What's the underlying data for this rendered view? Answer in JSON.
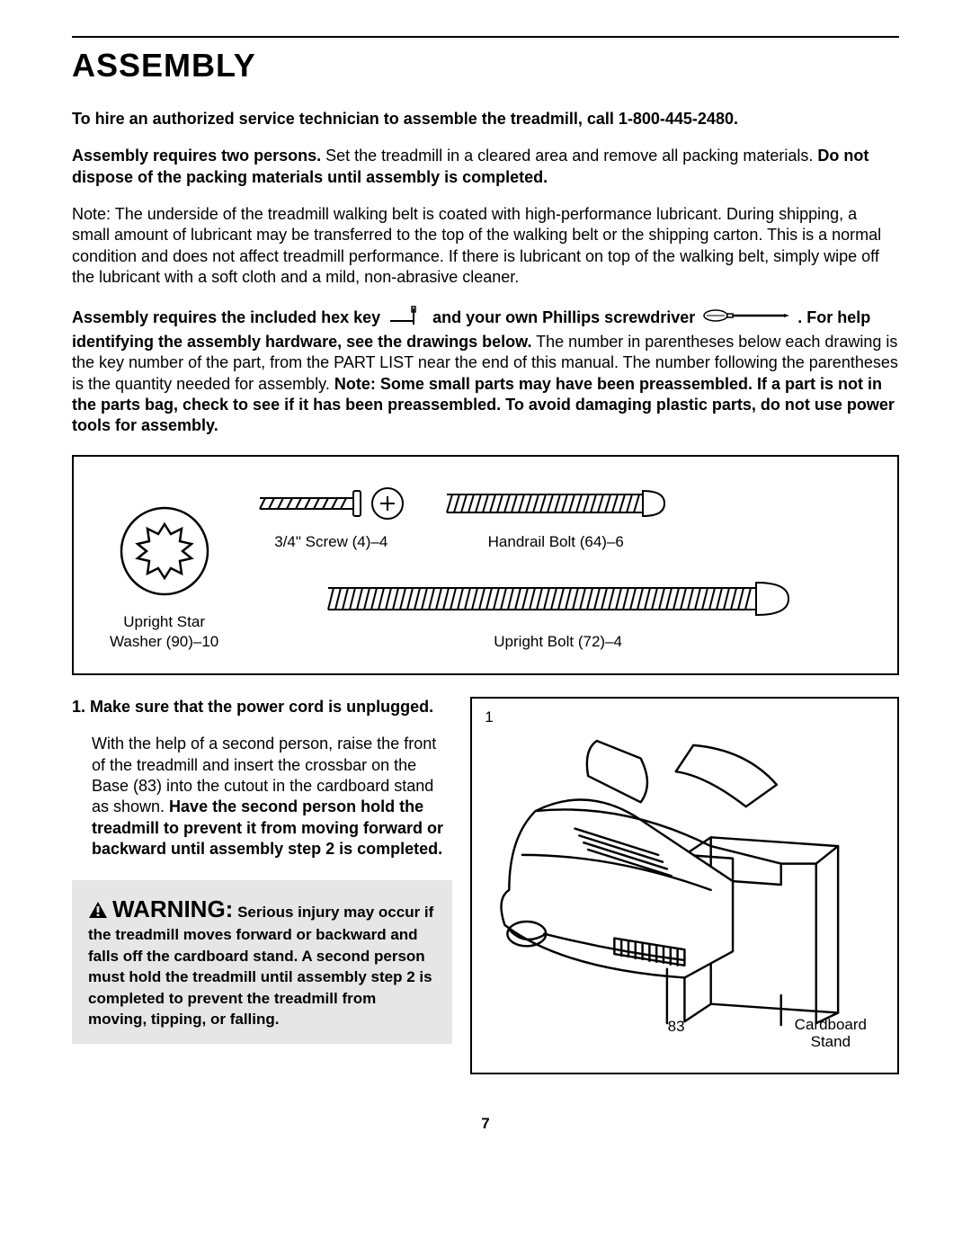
{
  "page": {
    "title": "ASSEMBLY",
    "hire_line": "To hire an authorized service technician to assemble the treadmill, call 1-800-445-2480.",
    "para2_bold1": "Assembly requires two persons.",
    "para2_mid": " Set the treadmill in a cleared area and remove all packing materials. ",
    "para2_bold2": "Do not dispose of the packing materials until assembly is completed.",
    "note_para": "Note: The underside of the treadmill walking belt is coated with high-performance lubricant. During shipping, a small amount of lubricant may be transferred to the top of the walking belt or the shipping carton. This is a normal condition and does not affect treadmill performance. If there is lubricant on top of the walking belt, simply wipe off the lubricant with a soft cloth and a mild, non-abrasive cleaner.",
    "tools_bold1": "Assembly requires the included hex key",
    "tools_mid1": " and your own Phillips screwdriver ",
    "tools_bold2": ". For help identifying the assembly hardware, see the drawings below.",
    "tools_mid2": " The number in parentheses below each drawing is the key number of the part, from the PART LIST near the end of this manual. The number following the parentheses is the quantity needed for assembly. ",
    "tools_bold3": "Note: Some small parts may have been preassembled. If a part is not in the parts bag, check to see if it has been preassembled. To avoid damaging plastic parts, do not use power tools for assembly.",
    "page_number": "7"
  },
  "hardware": {
    "washer_label": "Upright Star\nWasher (90)–10",
    "screw_label": "3/4\" Screw (4)–4",
    "handrail_bolt_label": "Handrail Bolt (64)–6",
    "upright_bolt_label": "Upright Bolt (72)–4"
  },
  "step1": {
    "number": "1.",
    "bold_lead": "Make sure that the power cord is unplugged.",
    "body_pre": "With the help of a second person, raise the front of the treadmill and insert the crossbar on the Base (83) into the cutout in the cardboard stand as shown. ",
    "body_bold": "Have the second person hold the treadmill to prevent it from moving forward or backward until assembly step 2 is completed."
  },
  "warning": {
    "heading": "WARNING:",
    "body": " Serious injury may occur if the treadmill moves forward or backward and falls off the cardboard stand. A second person must hold the treadmill until assembly step 2 is completed to prevent the treadmill from moving, tipping, or falling."
  },
  "figure": {
    "num": "1",
    "label_83": "83",
    "label_cardboard": "Cardboard\nStand"
  },
  "colors": {
    "text": "#000000",
    "bg": "#ffffff",
    "warning_bg": "#e6e6e6",
    "border": "#000000"
  }
}
